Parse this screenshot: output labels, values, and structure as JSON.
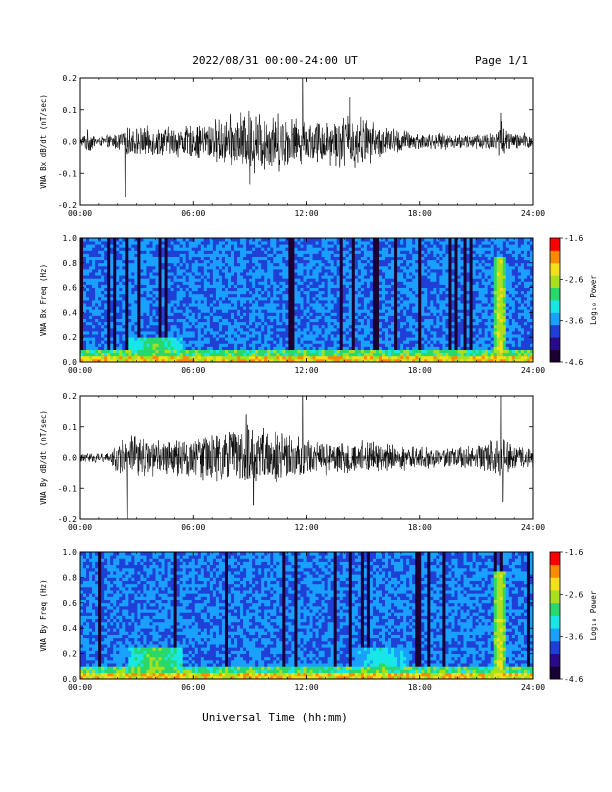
{
  "header": {
    "date_range": "2022/08/31  00:00-24:00 UT",
    "page": "Page 1/1"
  },
  "xlabel": "Universal Time (hh:mm)",
  "colors": {
    "trace": "#000000",
    "frame": "#000000"
  },
  "colormap": [
    "#1a0033",
    "#2a0a8a",
    "#1f3fd6",
    "#1aa0ff",
    "#19e6e6",
    "#28d86a",
    "#a8e020",
    "#f4e01a",
    "#ff8a00",
    "#ff0000"
  ],
  "chart_data": [
    {
      "type": "line",
      "ylabel": "VNA Bx dB/dt (nT/sec)",
      "x_ticks": [
        "00:00",
        "06:00",
        "12:00",
        "18:00",
        "24:00"
      ],
      "xlim": [
        0,
        24
      ],
      "y_ticks": [
        "0.2",
        "0.1",
        "0.0",
        "-0.1",
        "-0.2"
      ],
      "ylim": [
        -0.2,
        0.2
      ],
      "activity_envelope": [
        {
          "t": 0.0,
          "a": 0.012
        },
        {
          "t": 0.4,
          "a": 0.04
        },
        {
          "t": 1.0,
          "a": 0.015
        },
        {
          "t": 2.0,
          "a": 0.03
        },
        {
          "t": 2.5,
          "a": 0.05
        },
        {
          "t": 4.0,
          "a": 0.05
        },
        {
          "t": 6.0,
          "a": 0.055
        },
        {
          "t": 8.0,
          "a": 0.09
        },
        {
          "t": 9.0,
          "a": 0.11
        },
        {
          "t": 10.5,
          "a": 0.1
        },
        {
          "t": 12.0,
          "a": 0.07
        },
        {
          "t": 13.5,
          "a": 0.085
        },
        {
          "t": 14.5,
          "a": 0.1
        },
        {
          "t": 16.0,
          "a": 0.055
        },
        {
          "t": 18.0,
          "a": 0.03
        },
        {
          "t": 20.0,
          "a": 0.025
        },
        {
          "t": 22.0,
          "a": 0.035
        },
        {
          "t": 22.3,
          "a": 0.08
        },
        {
          "t": 22.8,
          "a": 0.03
        },
        {
          "t": 24.0,
          "a": 0.03
        }
      ],
      "spikes": [
        {
          "t": 2.4,
          "y": -0.175
        },
        {
          "t": 11.8,
          "y": 0.205
        },
        {
          "t": 14.3,
          "y": 0.14
        },
        {
          "t": 9.0,
          "y": -0.135
        },
        {
          "t": 22.3,
          "y": 0.09
        }
      ]
    },
    {
      "type": "heatmap",
      "ylabel": "VNA Bx Freq (Hz)",
      "x_ticks": [
        "00:00",
        "06:00",
        "12:00",
        "18:00",
        "24:00"
      ],
      "xlim": [
        0,
        24
      ],
      "y_ticks": [
        "1.0",
        "0.8",
        "0.6",
        "0.4",
        "0.2",
        "0.0"
      ],
      "ylim": [
        0.0,
        1.0
      ],
      "colorbar": {
        "label": "Log₁₀ Power",
        "ticks": [
          "-1.6",
          "-2.6",
          "-3.6",
          "-4.6"
        ],
        "range": [
          -4.6,
          -1.6
        ]
      },
      "features": [
        {
          "t": 22.25,
          "freq_top": 0.85,
          "level": -2.5
        },
        {
          "t": 4.0,
          "freq_top": 0.2,
          "level": -2.9
        },
        {
          "t": 12.0,
          "freq_top": 0.05,
          "level": -2.4
        }
      ]
    },
    {
      "type": "line",
      "ylabel": "VNA By dB/dt (nT/sec)",
      "x_ticks": [
        "00:00",
        "06:00",
        "12:00",
        "18:00",
        "24:00"
      ],
      "xlim": [
        0,
        24
      ],
      "y_ticks": [
        "0.2",
        "0.1",
        "0.0",
        "-0.1",
        "-0.2"
      ],
      "ylim": [
        -0.2,
        0.2
      ],
      "activity_envelope": [
        {
          "t": 0.0,
          "a": 0.015
        },
        {
          "t": 1.5,
          "a": 0.02
        },
        {
          "t": 2.2,
          "a": 0.07
        },
        {
          "t": 3.0,
          "a": 0.08
        },
        {
          "t": 4.5,
          "a": 0.06
        },
        {
          "t": 6.0,
          "a": 0.07
        },
        {
          "t": 7.5,
          "a": 0.09
        },
        {
          "t": 9.0,
          "a": 0.115
        },
        {
          "t": 10.5,
          "a": 0.09
        },
        {
          "t": 12.5,
          "a": 0.06
        },
        {
          "t": 14.0,
          "a": 0.065
        },
        {
          "t": 16.0,
          "a": 0.055
        },
        {
          "t": 18.0,
          "a": 0.04
        },
        {
          "t": 20.0,
          "a": 0.035
        },
        {
          "t": 22.0,
          "a": 0.06
        },
        {
          "t": 22.3,
          "a": 0.09
        },
        {
          "t": 22.8,
          "a": 0.05
        },
        {
          "t": 24.0,
          "a": 0.035
        }
      ],
      "spikes": [
        {
          "t": 2.5,
          "y": -0.2
        },
        {
          "t": 11.8,
          "y": 0.2
        },
        {
          "t": 9.2,
          "y": -0.155
        },
        {
          "t": 8.8,
          "y": 0.14
        },
        {
          "t": 22.3,
          "y": 0.2
        },
        {
          "t": 22.4,
          "y": -0.145
        }
      ]
    },
    {
      "type": "heatmap",
      "ylabel": "VNA By Freq (Hz)",
      "x_ticks": [
        "00:00",
        "06:00",
        "12:00",
        "18:00",
        "24:00"
      ],
      "xlim": [
        0,
        24
      ],
      "y_ticks": [
        "1.0",
        "0.8",
        "0.6",
        "0.4",
        "0.2",
        "0.0"
      ],
      "ylim": [
        0.0,
        1.0
      ],
      "colorbar": {
        "label": "Log₁₀ Power",
        "ticks": [
          "-1.6",
          "-2.6",
          "-3.6",
          "-4.6"
        ],
        "range": [
          -4.6,
          -1.6
        ]
      },
      "features": [
        {
          "t": 22.25,
          "freq_top": 0.85,
          "level": -2.5
        },
        {
          "t": 4.0,
          "freq_top": 0.25,
          "level": -2.8
        },
        {
          "t": 16.0,
          "freq_top": 0.25,
          "level": -3.2
        }
      ]
    }
  ]
}
